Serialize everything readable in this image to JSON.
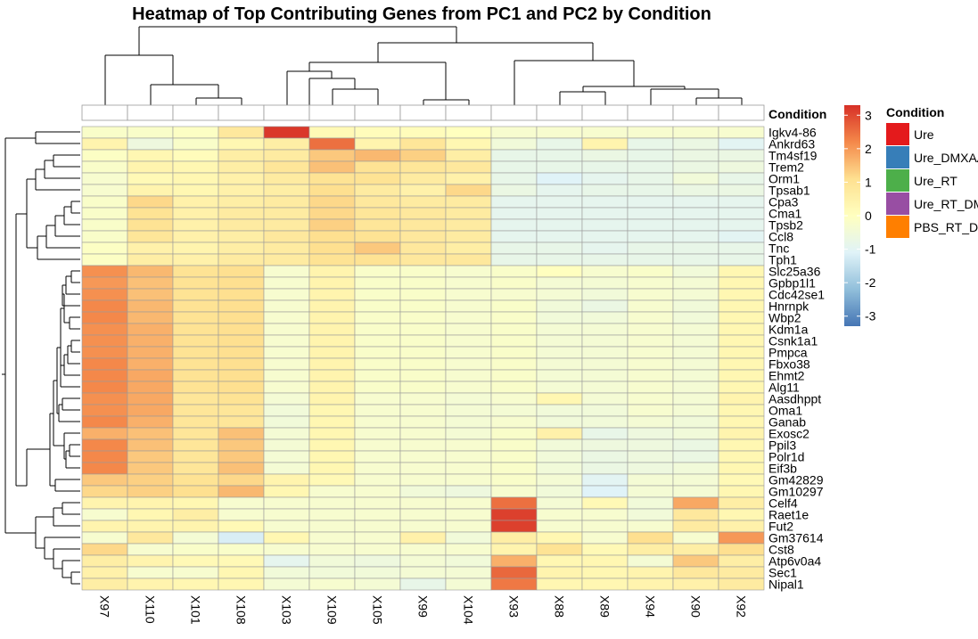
{
  "chart_data": {
    "type": "heatmap",
    "title": "Heatmap of Top Contributing Genes from PC1 and PC2 by Condition",
    "columns": [
      "X97",
      "X110",
      "X101",
      "X108",
      "X103",
      "X109",
      "X105",
      "X99",
      "X104",
      "X93",
      "X88",
      "X89",
      "X94",
      "X90",
      "X92"
    ],
    "rows": [
      "Igkv4-86",
      "Ankrd63",
      "Tm4sf19",
      "Trem2",
      "Orm1",
      "Tpsab1",
      "Cpa3",
      "Cma1",
      "Tpsb2",
      "Ccl8",
      "Tnc",
      "Tph1",
      "Slc25a36",
      "Gpbp1l1",
      "Cdc42se1",
      "Hnrnpk",
      "Wbp2",
      "Kdm1a",
      "Csnk1a1",
      "Pmpca",
      "Fbxo38",
      "Ehmt2",
      "Alg11",
      "Aasdhppt",
      "Oma1",
      "Ganab",
      "Exosc2",
      "Ppil3",
      "Polr1d",
      "Eif3b",
      "Gm42829",
      "Gm10297",
      "Celf4",
      "Raet1e",
      "Fut2",
      "Gm37614",
      "Cst8",
      "Atp6v0a4",
      "Sec1",
      "Nipal1"
    ],
    "values": [
      [
        -0.2,
        -0.2,
        -0.1,
        0.8,
        3.2,
        0.2,
        0.1,
        0.1,
        0.0,
        -0.3,
        -0.3,
        -0.3,
        -0.3,
        -0.3,
        -0.3
      ],
      [
        0.4,
        -0.6,
        -0.2,
        0.3,
        0.6,
        2.5,
        0.4,
        0.9,
        0.3,
        -0.5,
        -0.8,
        0.4,
        -0.8,
        -0.7,
        -1.0
      ],
      [
        -0.1,
        0.3,
        0.1,
        0.6,
        0.7,
        1.4,
        1.6,
        1.3,
        0.6,
        -0.8,
        -0.8,
        -0.7,
        -0.8,
        -0.7,
        -0.7
      ],
      [
        -0.2,
        0.4,
        0.3,
        0.6,
        0.9,
        1.5,
        1.0,
        0.9,
        0.8,
        -0.8,
        -0.8,
        -0.8,
        -0.8,
        -0.7,
        -0.6
      ],
      [
        -0.3,
        0.2,
        0.3,
        0.5,
        0.7,
        1.0,
        1.0,
        0.7,
        0.5,
        -0.8,
        -1.1,
        -0.9,
        -0.8,
        -0.5,
        -0.8
      ],
      [
        -0.3,
        0.4,
        0.3,
        0.5,
        0.6,
        1.1,
        0.7,
        0.5,
        1.2,
        -0.7,
        -0.9,
        -0.8,
        -0.8,
        -0.7,
        -0.7
      ],
      [
        -0.2,
        1.2,
        0.5,
        0.6,
        0.7,
        1.2,
        0.8,
        0.7,
        0.7,
        -0.9,
        -0.9,
        -0.9,
        -0.9,
        -0.9,
        -0.9
      ],
      [
        -0.2,
        1.0,
        0.5,
        0.7,
        0.7,
        1.2,
        0.9,
        0.8,
        0.7,
        -0.9,
        -0.9,
        -0.9,
        -0.9,
        -0.9,
        -0.9
      ],
      [
        -0.2,
        1.0,
        0.5,
        0.7,
        0.7,
        1.3,
        0.9,
        0.8,
        0.7,
        -0.9,
        -0.9,
        -0.9,
        -0.9,
        -0.9,
        -0.9
      ],
      [
        -0.2,
        0.9,
        0.5,
        0.6,
        0.8,
        1.1,
        1.0,
        0.8,
        0.7,
        -0.9,
        -0.9,
        -0.9,
        -0.9,
        -0.9,
        -1.0
      ],
      [
        -0.1,
        0.5,
        0.4,
        0.6,
        0.7,
        1.1,
        1.4,
        0.8,
        0.6,
        -0.8,
        -0.8,
        -0.9,
        -0.8,
        -0.8,
        -0.8
      ],
      [
        -0.1,
        0.6,
        0.5,
        0.7,
        0.7,
        1.0,
        1.0,
        0.8,
        0.8,
        -0.8,
        -0.8,
        -0.8,
        -0.8,
        -0.8,
        -0.8
      ],
      [
        2.1,
        1.6,
        1.0,
        1.1,
        -0.3,
        0.4,
        -0.2,
        -0.2,
        -0.3,
        -0.2,
        0.0,
        -0.3,
        -0.2,
        -0.5,
        0.3
      ],
      [
        2.0,
        1.5,
        1.0,
        1.1,
        -0.3,
        0.4,
        -0.2,
        -0.2,
        -0.3,
        -0.2,
        -0.4,
        -0.4,
        -0.3,
        -0.4,
        0.3
      ],
      [
        2.1,
        1.5,
        1.0,
        1.1,
        -0.3,
        0.4,
        -0.2,
        -0.2,
        -0.3,
        -0.3,
        -0.4,
        -0.5,
        -0.3,
        -0.4,
        0.3
      ],
      [
        2.2,
        1.6,
        1.0,
        1.1,
        -0.3,
        0.4,
        -0.2,
        -0.2,
        -0.3,
        -0.2,
        -0.5,
        -0.7,
        -0.3,
        -0.5,
        0.3
      ],
      [
        2.2,
        1.6,
        1.0,
        1.1,
        -0.3,
        0.4,
        -0.2,
        -0.2,
        -0.3,
        -0.2,
        -0.5,
        -0.5,
        -0.3,
        -0.5,
        0.3
      ],
      [
        2.1,
        1.7,
        1.0,
        1.1,
        -0.3,
        0.4,
        -0.2,
        -0.2,
        -0.3,
        -0.2,
        -0.4,
        -0.4,
        -0.3,
        -0.4,
        0.3
      ],
      [
        2.1,
        1.7,
        1.0,
        1.1,
        -0.3,
        0.4,
        -0.2,
        -0.2,
        -0.3,
        -0.2,
        -0.4,
        -0.4,
        -0.3,
        -0.4,
        0.3
      ],
      [
        2.1,
        1.7,
        1.0,
        1.1,
        -0.3,
        0.4,
        -0.2,
        -0.2,
        -0.3,
        -0.2,
        -0.4,
        -0.4,
        -0.3,
        -0.4,
        0.3
      ],
      [
        2.2,
        1.7,
        1.0,
        1.1,
        -0.3,
        0.4,
        -0.2,
        -0.2,
        -0.3,
        -0.2,
        -0.4,
        -0.4,
        -0.3,
        -0.4,
        0.3
      ],
      [
        2.2,
        1.8,
        1.0,
        1.1,
        -0.3,
        0.4,
        -0.2,
        -0.2,
        -0.3,
        -0.2,
        -0.4,
        -0.4,
        -0.3,
        -0.4,
        0.3
      ],
      [
        2.2,
        1.8,
        1.0,
        1.1,
        -0.3,
        0.4,
        -0.2,
        -0.2,
        -0.3,
        -0.2,
        -0.4,
        -0.4,
        -0.3,
        -0.4,
        0.3
      ],
      [
        2.1,
        1.8,
        0.9,
        1.0,
        -0.4,
        0.4,
        -0.3,
        -0.3,
        -0.4,
        -0.3,
        0.3,
        -0.4,
        -0.3,
        -0.4,
        0.4
      ],
      [
        2.1,
        1.8,
        0.9,
        0.9,
        -0.5,
        0.3,
        -0.3,
        -0.3,
        -0.4,
        -0.4,
        -0.5,
        -0.5,
        -0.3,
        -0.4,
        0.3
      ],
      [
        2.2,
        1.7,
        0.9,
        0.9,
        -0.5,
        0.3,
        -0.3,
        -0.3,
        -0.4,
        -0.3,
        -0.5,
        -0.5,
        -0.4,
        -0.5,
        0.3
      ],
      [
        1.7,
        1.5,
        0.9,
        1.5,
        -0.4,
        0.3,
        -0.3,
        -0.3,
        -0.4,
        -0.2,
        0.5,
        -0.8,
        -0.6,
        -0.5,
        0.4
      ],
      [
        2.2,
        1.5,
        0.9,
        1.4,
        -0.4,
        0.3,
        -0.3,
        -0.3,
        -0.3,
        -0.2,
        -0.5,
        -0.6,
        -0.6,
        -0.7,
        0.3
      ],
      [
        2.2,
        1.4,
        0.9,
        1.4,
        -0.4,
        0.3,
        -0.3,
        -0.3,
        -0.3,
        -0.2,
        -0.5,
        -0.7,
        -0.6,
        -0.7,
        0.3
      ],
      [
        2.2,
        1.4,
        0.9,
        1.5,
        -0.4,
        0.3,
        -0.3,
        -0.3,
        -0.3,
        -0.2,
        -0.5,
        -0.7,
        -0.6,
        -0.5,
        0.3
      ],
      [
        1.4,
        1.3,
        1.0,
        1.2,
        0.4,
        0.2,
        -0.3,
        -0.3,
        -0.3,
        -0.2,
        -0.4,
        -1.0,
        -0.4,
        -0.4,
        0.2
      ],
      [
        1.2,
        1.3,
        1.1,
        1.6,
        0.3,
        -0.3,
        -0.3,
        -0.5,
        -0.6,
        -0.3,
        -0.5,
        -1.1,
        -0.4,
        -0.4,
        0.3
      ],
      [
        0.4,
        0.4,
        0.3,
        -0.3,
        -0.3,
        -0.3,
        -0.3,
        -0.3,
        -0.3,
        2.5,
        -0.4,
        0.2,
        -0.5,
        1.8,
        0.6
      ],
      [
        -0.3,
        0.3,
        0.6,
        -0.3,
        -0.3,
        -0.3,
        -0.3,
        -0.3,
        -0.3,
        3.1,
        -0.3,
        -0.3,
        -0.5,
        0.8,
        0.3
      ],
      [
        0.4,
        0.4,
        0.4,
        0.2,
        -0.3,
        -0.3,
        -0.3,
        -0.3,
        -0.3,
        3.1,
        -0.3,
        -0.3,
        -0.3,
        0.7,
        0.5
      ],
      [
        -0.3,
        0.8,
        -0.4,
        -1.2,
        0.3,
        -0.3,
        -0.3,
        0.5,
        -0.5,
        0.6,
        0.3,
        -0.3,
        1.1,
        -0.3,
        2.0
      ],
      [
        1.2,
        -0.3,
        -0.2,
        -0.2,
        -0.3,
        -0.3,
        -0.3,
        -0.3,
        -0.3,
        0.4,
        1.0,
        0.2,
        0.6,
        0.6,
        1.1
      ],
      [
        0.6,
        0.4,
        0.2,
        0.2,
        -0.9,
        -0.5,
        -0.6,
        -0.4,
        -0.5,
        1.7,
        0.3,
        0.3,
        -0.4,
        1.4,
        0.6
      ],
      [
        0.5,
        -0.3,
        -0.3,
        0.3,
        -0.5,
        -0.5,
        -0.5,
        -0.4,
        -0.4,
        2.6,
        0.4,
        0.3,
        0.4,
        0.8,
        0.7
      ],
      [
        0.6,
        0.4,
        0.3,
        0.3,
        -0.4,
        -0.3,
        -0.4,
        -0.8,
        -0.4,
        2.4,
        0.3,
        0.3,
        0.4,
        0.5,
        0.7
      ]
    ],
    "color_scale": {
      "min": -3.3,
      "max": 3.3,
      "stops": [
        {
          "v": -3.3,
          "c": "#4575b4"
        },
        {
          "v": -2.2,
          "c": "#91bfdb"
        },
        {
          "v": -1.1,
          "c": "#e0f3f8"
        },
        {
          "v": 0,
          "c": "#ffffbf"
        },
        {
          "v": 1.1,
          "c": "#fee090"
        },
        {
          "v": 2.2,
          "c": "#f4884a"
        },
        {
          "v": 3.3,
          "c": "#d73027"
        }
      ],
      "ticks": [
        "3",
        "2",
        "1",
        "0",
        "-1",
        "-2",
        "-3"
      ],
      "tick_values": [
        3,
        2,
        1,
        0,
        -1,
        -2,
        -3
      ]
    },
    "annotation": {
      "label": "Condition",
      "bar_color": "#ffffff"
    },
    "legend": {
      "title": "Condition",
      "items": [
        {
          "label": "Ure",
          "color": "#e41a1c"
        },
        {
          "label": "Ure_DMXAA",
          "color": "#377eb8"
        },
        {
          "label": "Ure_RT",
          "color": "#4daf4a"
        },
        {
          "label": "Ure_RT_DMXAA",
          "color": "#984ea3"
        },
        {
          "label": "PBS_RT_DMXAA",
          "color": "#ff7f00"
        }
      ]
    }
  }
}
